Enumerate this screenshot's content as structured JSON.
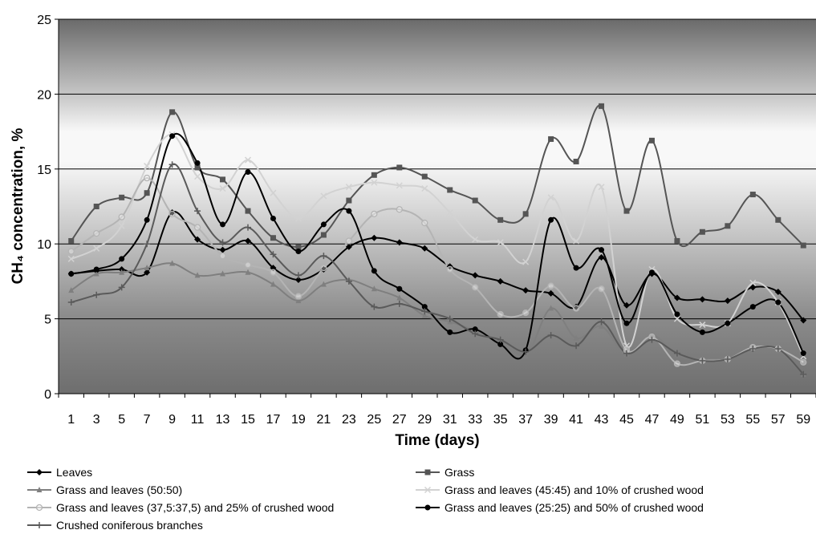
{
  "chart_data": {
    "type": "line",
    "xlabel": "Time (days)",
    "ylabel": "CH₄ concentration, %",
    "ylim": [
      0,
      25
    ],
    "yticks": [
      "0",
      "5",
      "10",
      "15",
      "20",
      "25"
    ],
    "xticks": [
      "1",
      "3",
      "5",
      "7",
      "9",
      "11",
      "13",
      "15",
      "17",
      "19",
      "21",
      "23",
      "25",
      "27",
      "29",
      "31",
      "33",
      "35",
      "37",
      "39",
      "41",
      "43",
      "45",
      "47",
      "49",
      "51",
      "53",
      "55",
      "57",
      "59"
    ],
    "x": [
      1,
      3,
      5,
      7,
      9,
      11,
      13,
      15,
      17,
      19,
      21,
      23,
      25,
      27,
      29,
      31,
      33,
      35,
      37,
      39,
      41,
      43,
      45,
      47,
      49,
      51,
      53,
      55,
      57,
      59
    ],
    "grid": "horizontal",
    "legend_position": "bottom",
    "series": [
      {
        "name": "Leaves",
        "color": "#000000",
        "marker": "diamond",
        "values": [
          8.0,
          8.2,
          8.3,
          8.1,
          12.1,
          10.3,
          9.6,
          10.2,
          8.4,
          7.6,
          8.3,
          9.8,
          10.4,
          10.1,
          9.7,
          8.5,
          7.9,
          7.5,
          6.9,
          6.7,
          5.8,
          9.1,
          5.9,
          8.0,
          6.4,
          6.3,
          6.2,
          7.1,
          6.8,
          4.9
        ]
      },
      {
        "name": "Grass",
        "color": "#555555",
        "marker": "square",
        "values": [
          10.2,
          12.5,
          13.1,
          13.4,
          18.8,
          15.1,
          14.3,
          12.2,
          10.4,
          9.8,
          10.6,
          12.9,
          14.6,
          15.1,
          14.5,
          13.6,
          12.9,
          11.6,
          12.0,
          17.0,
          15.5,
          19.2,
          12.2,
          16.9,
          10.2,
          10.8,
          11.2,
          13.3,
          11.6,
          9.9
        ]
      },
      {
        "name": "Grass and leaves (50:50)",
        "color": "#7f7f7f",
        "marker": "triangle",
        "values": [
          6.9,
          8.0,
          8.1,
          8.4,
          8.7,
          7.9,
          8.0,
          8.1,
          7.3,
          6.2,
          7.3,
          7.6,
          7.0,
          6.4,
          5.2,
          4.8,
          4.2,
          3.5,
          2.5,
          5.7,
          3.7,
          4.5,
          2.6,
          3.9,
          2.6,
          2.3,
          2.4,
          3.1,
          2.9,
          1.3
        ]
      },
      {
        "name": "Grass and leaves (45:45) and 10% of crushed wood",
        "color": "#d2d2d2",
        "marker": "x",
        "values": [
          9.0,
          9.7,
          11.2,
          15.2,
          17.3,
          14.5,
          13.7,
          15.6,
          13.4,
          11.7,
          13.2,
          13.8,
          14.1,
          13.9,
          13.7,
          12.1,
          10.3,
          10.1,
          8.8,
          13.1,
          10.2,
          13.8,
          3.2,
          8.3,
          5.0,
          4.6,
          4.7,
          7.4,
          6.1,
          2.5
        ]
      },
      {
        "name": "Grass and leaves (37,5:37,5) and 25% of crushed wood",
        "color": "#b4b4b4",
        "marker": "circle-open",
        "values": [
          9.5,
          10.7,
          11.8,
          14.4,
          12.0,
          11.1,
          9.2,
          8.6,
          8.1,
          6.5,
          8.4,
          10.2,
          12.0,
          12.3,
          11.4,
          8.3,
          7.1,
          5.3,
          5.4,
          7.2,
          5.7,
          7.0,
          2.9,
          3.8,
          2.0,
          2.2,
          2.3,
          3.1,
          3.0,
          2.1
        ]
      },
      {
        "name": "Grass and leaves (25:25) and 50% of crushed wood",
        "color": "#000000",
        "marker": "circle",
        "values": [
          8.0,
          8.3,
          9.0,
          11.6,
          17.2,
          15.4,
          11.3,
          14.8,
          11.7,
          9.5,
          11.3,
          12.2,
          8.2,
          7.0,
          5.8,
          4.1,
          4.3,
          3.3,
          2.9,
          11.6,
          8.4,
          9.6,
          4.7,
          8.1,
          5.3,
          4.1,
          4.7,
          5.8,
          6.1,
          2.7
        ]
      },
      {
        "name": "Crushed coniferous branches",
        "color": "#5a5a5a",
        "marker": "plus",
        "values": [
          6.1,
          6.6,
          7.1,
          10.0,
          15.3,
          12.2,
          10.1,
          11.1,
          9.3,
          7.9,
          9.2,
          7.5,
          5.8,
          6.0,
          5.5,
          5.0,
          4.0,
          3.6,
          2.8,
          3.9,
          3.2,
          4.8,
          2.7,
          3.6,
          2.7,
          2.2,
          2.3,
          3.0,
          3.0,
          1.3
        ]
      }
    ]
  }
}
